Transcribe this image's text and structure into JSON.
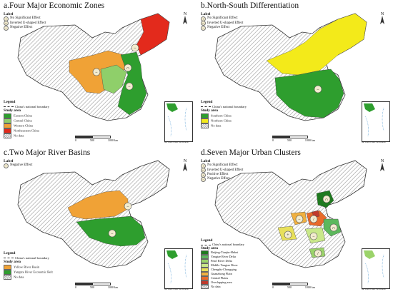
{
  "panels": {
    "a": {
      "title": "a.Four Major Economic Zones",
      "label_heading": "Label",
      "labels": [
        "No Significant Effect",
        "Inverted U-shaped Effect",
        "Negative Effect"
      ],
      "legend_heading": "Legend",
      "boundary": "China's national boundary",
      "study_area_heading": "Study area",
      "study_areas": [
        {
          "name": "Eastern China",
          "color": "#2e9e2e"
        },
        {
          "name": "Central China",
          "color": "#8fcf6a"
        },
        {
          "name": "Western China",
          "color": "#f0a236"
        },
        {
          "name": "Northeastern China",
          "color": "#e32a1c"
        }
      ],
      "no_data": "No data",
      "scale": [
        "0",
        "500",
        "1000 km"
      ],
      "inset_caption": "the South China Sea Islands"
    },
    "b": {
      "title": "b.North-South Differentiation",
      "label_heading": "Label",
      "labels": [
        "No Significant Effect",
        "Inverted U-shaped Effect",
        "Negative Effect"
      ],
      "legend_heading": "Legend",
      "boundary": "China's national boundary",
      "study_area_heading": "Study area",
      "study_areas": [
        {
          "name": "Southern China",
          "color": "#2e9e2e"
        },
        {
          "name": "Northern China",
          "color": "#f3ea1a"
        }
      ],
      "no_data": "No data",
      "scale": [
        "0",
        "500",
        "1000 km"
      ],
      "inset_caption": "the South China Sea Islands"
    },
    "c": {
      "title": "c.Two Major River Basins",
      "label_heading": "Label",
      "labels": [
        "Negative Effect"
      ],
      "legend_heading": "Legend",
      "boundary": "China's national boundary",
      "study_area_heading": "Study area",
      "study_areas": [
        {
          "name": "Yellow River Basin",
          "color": "#f0a236"
        },
        {
          "name": "Yangtze River Economic Belt",
          "color": "#2e9e2e"
        }
      ],
      "no_data": "No data",
      "scale": [
        "0",
        "500",
        "1000 km"
      ],
      "inset_caption": "the South China Sea Islands"
    },
    "d": {
      "title": "d.Seven Major Urban Clusters",
      "label_heading": "Label",
      "labels": [
        "No Significant Effect",
        "Inverted U-shaped Effect",
        "Positive Effect",
        "Negative Effect"
      ],
      "legend_heading": "Legend",
      "boundary": "China's national boundary",
      "study_area_heading": "Study area",
      "study_areas": [
        {
          "name": "Beijing-Tianjin-Hebei",
          "color": "#1f7a1f"
        },
        {
          "name": "Yangtze River Delta",
          "color": "#5cb85c"
        },
        {
          "name": "Pearl River Delta",
          "color": "#9bd36a"
        },
        {
          "name": "Middle Yangtze River",
          "color": "#c9e88a"
        },
        {
          "name": "Chengdu-Chongqing",
          "color": "#e8e05a"
        },
        {
          "name": "Guanzhong Plain",
          "color": "#f0b040"
        },
        {
          "name": "Central Plains",
          "color": "#e86a2a"
        },
        {
          "name": "Overlapping area",
          "color": "#c0392b"
        }
      ],
      "no_data": "No data",
      "scale": [
        "0",
        "500",
        "1000 km"
      ],
      "inset_caption": "the South China Sea Islands"
    }
  },
  "symbols": {
    "no_effect": "/",
    "inverted_u": "∩",
    "positive": "+",
    "negative": "−"
  },
  "colors": {
    "no_data_hatch": "#999999",
    "boundary": "#333333"
  }
}
